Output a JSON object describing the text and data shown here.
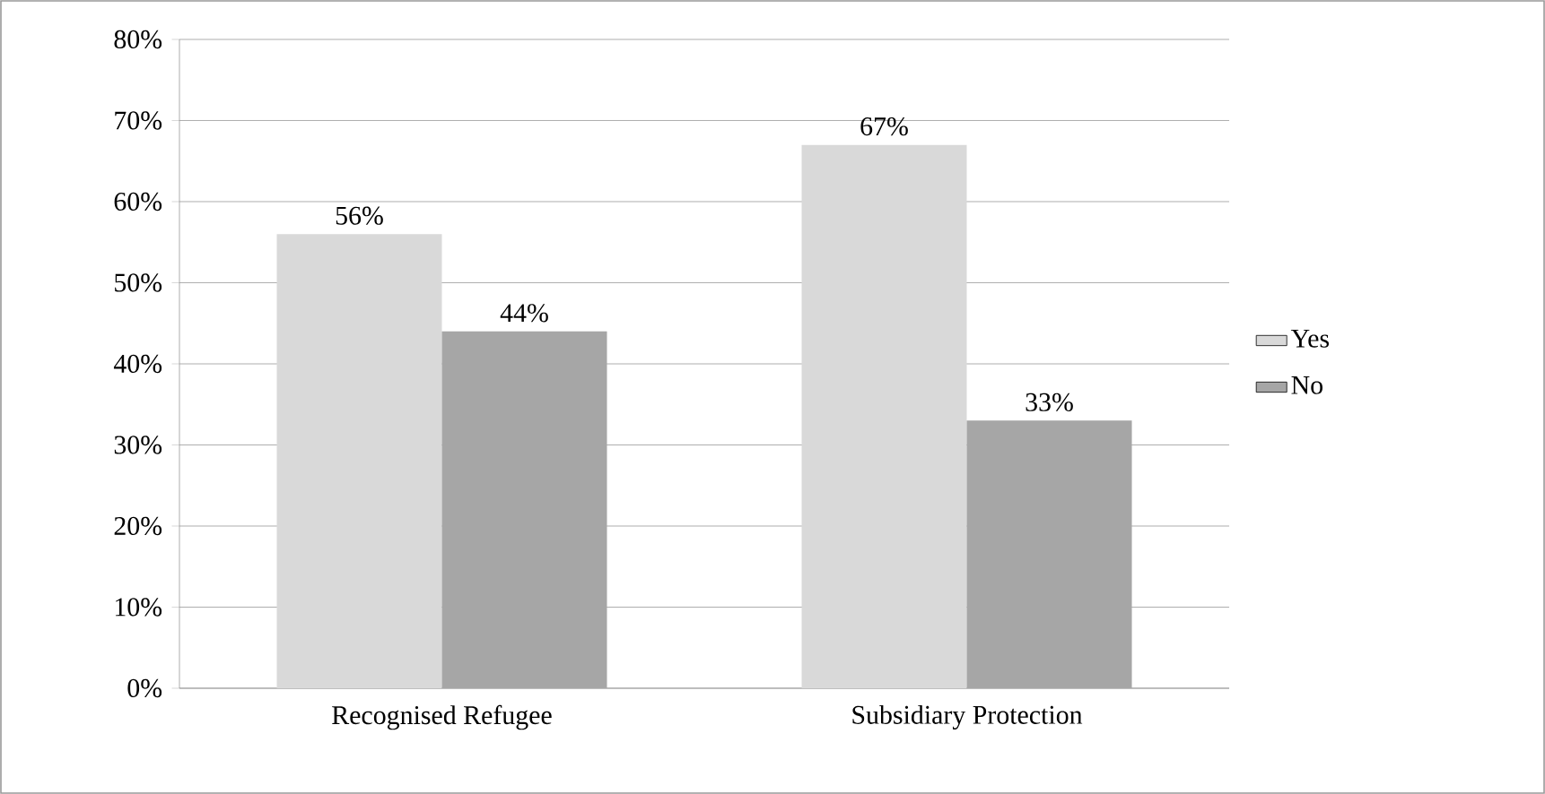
{
  "chart_data": {
    "type": "bar",
    "categories": [
      "Recognised Refugee",
      "Subsidiary Protection"
    ],
    "series": [
      {
        "name": "Yes",
        "color": "#d9d9d9",
        "values": [
          56,
          67
        ],
        "value_labels": [
          "56%",
          "67%"
        ]
      },
      {
        "name": "No",
        "color": "#a6a6a6",
        "values": [
          44,
          33
        ],
        "value_labels": [
          "44%",
          "33%"
        ]
      }
    ],
    "ylim": [
      0,
      80
    ],
    "yticks": [
      {
        "value": 0,
        "label": "0%"
      },
      {
        "value": 10,
        "label": "10%"
      },
      {
        "value": 20,
        "label": "20%"
      },
      {
        "value": 30,
        "label": "30%"
      },
      {
        "value": 40,
        "label": "40%"
      },
      {
        "value": 50,
        "label": "50%"
      },
      {
        "value": 60,
        "label": "60%"
      },
      {
        "value": 70,
        "label": "70%"
      },
      {
        "value": 80,
        "label": "80%"
      }
    ],
    "grid": "y",
    "legend": "right"
  }
}
